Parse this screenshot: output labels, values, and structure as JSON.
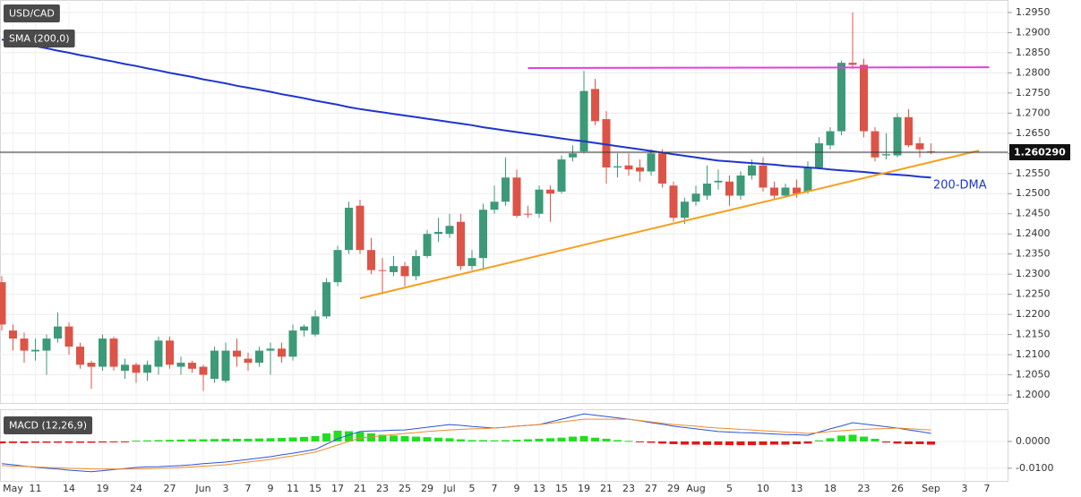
{
  "chart_data": {
    "type": "candlestick",
    "title": "USD/CAD",
    "grid": true,
    "up_color": "#3d9a78",
    "down_color": "#dc5447",
    "ylim": [
      1.198,
      1.2981
    ],
    "yticks": [
      {
        "value": 1.2,
        "label": "1.2000"
      },
      {
        "value": 1.205,
        "label": "1.2050"
      },
      {
        "value": 1.21,
        "label": "1.2100"
      },
      {
        "value": 1.215,
        "label": "1.2150"
      },
      {
        "value": 1.22,
        "label": "1.2200"
      },
      {
        "value": 1.225,
        "label": "1.2250"
      },
      {
        "value": 1.23,
        "label": "1.2300"
      },
      {
        "value": 1.235,
        "label": "1.2350"
      },
      {
        "value": 1.24,
        "label": "1.2400"
      },
      {
        "value": 1.245,
        "label": "1.2450"
      },
      {
        "value": 1.25,
        "label": "1.2500"
      },
      {
        "value": 1.255,
        "label": "1.2550"
      },
      {
        "value": 1.26,
        "label": "1.2600"
      },
      {
        "value": 1.265,
        "label": "1.2650"
      },
      {
        "value": 1.27,
        "label": "1.2700"
      },
      {
        "value": 1.275,
        "label": "1.2750"
      },
      {
        "value": 1.28,
        "label": "1.2800"
      },
      {
        "value": 1.285,
        "label": "1.2850"
      },
      {
        "value": 1.29,
        "label": "1.2900"
      },
      {
        "value": 1.295,
        "label": "1.2950"
      }
    ],
    "categories": [
      null,
      "May",
      null,
      "11",
      null,
      null,
      "14",
      null,
      null,
      "19",
      null,
      null,
      "24",
      null,
      null,
      "27",
      null,
      null,
      "Jun",
      null,
      "3",
      null,
      "7",
      null,
      "9",
      null,
      "11",
      null,
      "15",
      null,
      "17",
      null,
      "21",
      null,
      "23",
      null,
      "25",
      null,
      "29",
      null,
      "Jul",
      null,
      "5",
      null,
      "7",
      null,
      "9",
      null,
      "13",
      null,
      "15",
      null,
      "19",
      null,
      "21",
      null,
      "23",
      null,
      "27",
      null,
      "29",
      null,
      "Aug",
      null,
      null,
      "5",
      null,
      null,
      "10",
      null,
      null,
      "13",
      null,
      null,
      "18",
      null,
      null,
      "23",
      null,
      null,
      "26",
      null,
      null,
      "Sep",
      null,
      null,
      "3",
      null,
      "7"
    ],
    "open": [
      1.228,
      1.216,
      1.214,
      1.2108,
      1.211,
      1.214,
      1.217,
      1.212,
      1.208,
      1.207,
      1.214,
      1.206,
      1.2075,
      1.2055,
      1.207,
      1.2135,
      1.207,
      1.208,
      1.207,
      1.204,
      1.2035,
      1.211,
      1.209,
      1.208,
      1.211,
      1.2115,
      1.2095,
      1.216,
      1.215,
      1.2195,
      1.228,
      1.236,
      1.247,
      1.236,
      1.231,
      1.2305,
      1.232,
      1.2295,
      1.2345,
      1.24,
      1.24,
      1.243,
      1.232,
      1.234,
      1.246,
      1.248,
      1.254,
      1.245,
      1.245,
      1.251,
      1.2505,
      1.259,
      1.2605,
      1.276,
      1.2685,
      1.2565,
      1.257,
      1.2565,
      1.2555,
      1.26,
      1.252,
      1.244,
      1.248,
      1.2495,
      1.2528,
      1.253,
      1.2495,
      1.2545,
      1.257,
      1.2515,
      1.2495,
      1.2515,
      1.2505,
      1.2565,
      1.262,
      1.2655,
      1.2825,
      1.282,
      1.2655,
      1.2595,
      1.2595,
      1.269,
      1.2625,
      1.2605,
      null,
      null,
      null,
      null,
      null
    ],
    "high": [
      1.2295,
      1.2175,
      1.2155,
      1.214,
      1.215,
      1.2205,
      1.218,
      1.213,
      1.2085,
      1.215,
      1.2145,
      1.209,
      1.208,
      1.2085,
      1.2145,
      1.2145,
      1.2095,
      1.2085,
      1.2075,
      1.212,
      1.213,
      1.214,
      1.2105,
      1.212,
      1.213,
      1.213,
      1.2175,
      1.2175,
      1.221,
      1.229,
      1.237,
      1.248,
      1.2485,
      1.239,
      1.234,
      1.2345,
      1.233,
      1.236,
      1.241,
      1.244,
      1.245,
      1.245,
      1.236,
      1.2475,
      1.252,
      1.259,
      1.256,
      1.247,
      1.252,
      1.252,
      1.2595,
      1.262,
      1.2805,
      1.2785,
      1.2705,
      1.26,
      1.26,
      1.2585,
      1.261,
      1.261,
      1.253,
      1.249,
      1.252,
      1.257,
      1.256,
      1.2545,
      1.2555,
      1.2585,
      1.259,
      1.253,
      1.2525,
      1.2535,
      1.258,
      1.264,
      1.2665,
      1.283,
      1.295,
      1.2835,
      1.2665,
      1.265,
      1.27,
      1.271,
      1.264,
      1.2625,
      null,
      null,
      null,
      null,
      null
    ],
    "low": [
      1.216,
      1.211,
      1.208,
      1.2085,
      1.205,
      1.213,
      1.21,
      1.2065,
      1.2015,
      1.206,
      1.206,
      1.204,
      1.203,
      1.2035,
      1.205,
      1.2065,
      1.205,
      1.2055,
      1.201,
      1.203,
      1.203,
      1.207,
      1.206,
      1.207,
      1.205,
      1.208,
      1.2085,
      1.2145,
      1.2145,
      1.219,
      1.227,
      1.235,
      1.235,
      1.23,
      1.225,
      1.2295,
      1.227,
      1.2285,
      1.234,
      1.238,
      1.239,
      1.231,
      1.231,
      1.231,
      1.245,
      1.247,
      1.244,
      1.244,
      1.244,
      1.243,
      1.25,
      1.258,
      1.26,
      1.267,
      1.2525,
      1.254,
      1.2545,
      1.253,
      1.2545,
      1.2515,
      1.243,
      1.2425,
      1.247,
      1.2485,
      1.251,
      1.247,
      1.2485,
      1.2535,
      1.2505,
      1.2485,
      1.249,
      1.249,
      1.25,
      1.256,
      1.261,
      1.2645,
      1.281,
      1.264,
      1.258,
      1.2585,
      1.259,
      1.2615,
      1.259,
      1.2598,
      null,
      null,
      null,
      null,
      null
    ],
    "close": [
      1.2175,
      1.214,
      1.211,
      1.2112,
      1.214,
      1.217,
      1.212,
      1.2075,
      1.207,
      1.214,
      1.207,
      1.2075,
      1.2055,
      1.2075,
      1.2135,
      1.2075,
      1.208,
      1.2065,
      1.205,
      1.211,
      1.211,
      1.2095,
      1.208,
      1.211,
      1.2115,
      1.2095,
      1.216,
      1.217,
      1.2195,
      1.228,
      1.236,
      1.2465,
      1.236,
      1.231,
      1.2308,
      1.232,
      1.2295,
      1.2345,
      1.24,
      1.2405,
      1.242,
      1.232,
      1.234,
      1.246,
      1.248,
      1.254,
      1.2445,
      1.2448,
      1.251,
      1.25,
      1.2585,
      1.26,
      1.2755,
      1.268,
      1.2565,
      1.2568,
      1.256,
      1.2555,
      1.26,
      1.2525,
      1.244,
      1.248,
      1.25,
      1.2525,
      1.2532,
      1.2495,
      1.2545,
      1.257,
      1.2515,
      1.2495,
      1.2515,
      1.25,
      1.2565,
      1.2625,
      1.2655,
      1.2825,
      1.282,
      1.2655,
      1.259,
      1.2598,
      1.269,
      1.262,
      1.261,
      1.2603,
      null,
      null,
      null,
      null,
      null
    ],
    "sma": {
      "name": "SMA (200,0)",
      "annotation": "200-DMA",
      "color": "#1f35cc",
      "values": [
        1.2883,
        1.2877,
        1.2872,
        1.2866,
        1.2861,
        1.2855,
        1.285,
        1.2844,
        1.2839,
        1.2833,
        1.2828,
        1.2822,
        1.2817,
        1.2811,
        1.2806,
        1.28,
        1.2795,
        1.279,
        1.2784,
        1.2779,
        1.2774,
        1.2768,
        1.2763,
        1.2758,
        1.2753,
        1.2747,
        1.2742,
        1.2737,
        1.2731,
        1.2726,
        1.2721,
        1.2715,
        1.271,
        1.2706,
        1.2702,
        1.2698,
        1.2694,
        1.269,
        1.2686,
        1.2682,
        1.2678,
        1.2674,
        1.267,
        1.2665,
        1.2661,
        1.2657,
        1.2653,
        1.2649,
        1.2645,
        1.2641,
        1.2637,
        1.2633,
        1.263,
        1.2626,
        1.2622,
        1.2618,
        1.2614,
        1.261,
        1.2606,
        1.2602,
        1.2598,
        1.2594,
        1.259,
        1.2586,
        1.2582,
        1.258,
        1.2578,
        1.2576,
        1.2574,
        1.2572,
        1.2569,
        1.2567,
        1.2565,
        1.2563,
        1.256,
        1.2558,
        1.2556,
        1.2554,
        1.2551,
        1.2549,
        1.2547,
        1.2545,
        1.2542,
        1.254,
        null,
        null,
        null,
        null,
        null
      ]
    },
    "trendlines": [
      {
        "color": "#f5a020",
        "from": {
          "x": 32,
          "y": 1.224
        },
        "to": {
          "x": 87.3,
          "y": 1.2607
        }
      },
      {
        "color": "#e23ee2",
        "from": {
          "x": 47,
          "y": 1.2812
        },
        "to": {
          "x": 88.2,
          "y": 1.2814
        }
      }
    ],
    "last_price": {
      "value": 1.26029,
      "label": "1.260290"
    },
    "macd": {
      "type": "macd",
      "title": "MACD (12,26,9)",
      "ylim": [
        -0.0147,
        0.012
      ],
      "yticks": [
        {
          "value": 0,
          "label": "0.0000"
        },
        {
          "value": -0.01,
          "label": "-0.0100"
        }
      ],
      "macd_color": "#2a55d6",
      "signal_color": "#f08a2b",
      "pos_color": "#22dd22",
      "neg_color": "#e01818",
      "macd": [
        -0.0083,
        -0.0087,
        -0.0092,
        -0.0096,
        -0.01,
        -0.0103,
        -0.0107,
        -0.011,
        -0.0113,
        -0.0109,
        -0.0105,
        -0.0101,
        -0.0097,
        -0.0095,
        -0.0094,
        -0.0092,
        -0.009,
        -0.0087,
        -0.0083,
        -0.008,
        -0.0077,
        -0.0072,
        -0.0067,
        -0.0062,
        -0.0057,
        -0.005,
        -0.0044,
        -0.0037,
        -0.003,
        -0.001,
        0.001,
        0.0024,
        0.0037,
        0.0039,
        0.004,
        0.0042,
        0.0043,
        0.0048,
        0.0053,
        0.0058,
        0.0063,
        0.006,
        0.0056,
        0.0053,
        0.005,
        0.0053,
        0.0057,
        0.006,
        0.0063,
        0.0073,
        0.0083,
        0.0093,
        0.0103,
        0.0098,
        0.0093,
        0.0088,
        0.0083,
        0.0077,
        0.007,
        0.0064,
        0.0057,
        0.0052,
        0.0047,
        0.0042,
        0.0037,
        0.0035,
        0.0033,
        0.0032,
        0.003,
        0.0028,
        0.0026,
        0.0025,
        0.0023,
        0.0035,
        0.0047,
        0.0058,
        0.007,
        0.0065,
        0.006,
        0.0055,
        0.005,
        0.0043,
        0.0037,
        0.003,
        null,
        null,
        null,
        null,
        null
      ],
      "signal": [
        -0.009,
        -0.0092,
        -0.0093,
        -0.0095,
        -0.0097,
        -0.0098,
        -0.01,
        -0.0101,
        -0.0103,
        -0.0103,
        -0.0103,
        -0.0103,
        -0.0103,
        -0.0102,
        -0.01,
        -0.0099,
        -0.0097,
        -0.0095,
        -0.0092,
        -0.009,
        -0.0087,
        -0.0082,
        -0.0077,
        -0.0072,
        -0.0067,
        -0.006,
        -0.0054,
        -0.0047,
        -0.004,
        -0.0027,
        -0.0013,
        0,
        0.0013,
        0.0017,
        0.0022,
        0.0026,
        0.003,
        0.0033,
        0.0037,
        0.004,
        0.0043,
        0.0045,
        0.0047,
        0.0048,
        0.005,
        0.0053,
        0.0057,
        0.006,
        0.0063,
        0.0068,
        0.0073,
        0.0078,
        0.0083,
        0.0083,
        0.0083,
        0.0083,
        0.0083,
        0.0078,
        0.0073,
        0.0068,
        0.0063,
        0.006,
        0.0057,
        0.0053,
        0.005,
        0.0048,
        0.0045,
        0.0043,
        0.004,
        0.0038,
        0.0035,
        0.0033,
        0.003,
        0.0033,
        0.0037,
        0.004,
        0.0043,
        0.0045,
        0.0047,
        0.0048,
        0.005,
        0.0048,
        0.0045,
        0.0043,
        null,
        null,
        null,
        null,
        null
      ],
      "histogram": [
        -0.0007,
        -0.0006,
        -0.0006,
        -0.0005,
        -0.0005,
        -0.0005,
        -0.0005,
        -0.0005,
        -0.0005,
        -0.0004,
        -0.0003,
        -0.0002,
        0.0003,
        0.0004,
        0.0005,
        0.0006,
        0.0007,
        0.0008,
        0.0008,
        0.0009,
        0.001,
        0.001,
        0.001,
        0.0011,
        0.0012,
        0.0013,
        0.0015,
        0.0017,
        0.002,
        0.003,
        0.004,
        0.0038,
        0.0035,
        0.003,
        0.0025,
        0.0022,
        0.002,
        0.0018,
        0.0016,
        0.0014,
        0.0012,
        0.0008,
        0.0005,
        0.0005,
        0.0004,
        0.0005,
        0.0006,
        0.0008,
        0.001,
        0.0012,
        0.0014,
        0.0018,
        0.002,
        0.0014,
        0.001,
        0.0005,
        0.0002,
        -0.0003,
        -0.0005,
        -0.0008,
        -0.001,
        -0.0012,
        -0.0012,
        -0.0013,
        -0.0013,
        -0.0014,
        -0.0014,
        -0.0014,
        -0.0013,
        -0.0012,
        -0.0012,
        -0.001,
        -0.0008,
        0.0004,
        0.0012,
        0.0022,
        0.0025,
        0.0018,
        0.001,
        -0.0004,
        -0.0008,
        -0.001,
        -0.001,
        -0.0012,
        null,
        null,
        null,
        null,
        null
      ]
    }
  }
}
